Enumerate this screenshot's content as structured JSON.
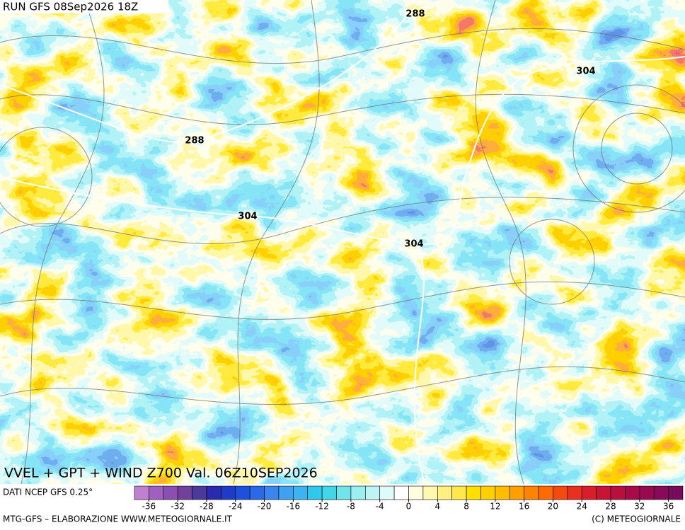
{
  "header": {
    "run": "RUN GFS 08Sep2026 18Z"
  },
  "map": {
    "contour_labels": [
      "288",
      "288",
      "304",
      "304",
      "304"
    ]
  },
  "footer": {
    "title": "VVEL + GPT + WIND Z700 Val. 06Z10SEP2026",
    "source": "DATI NCEP GFS 0.25°",
    "credit": "MTG-GFS – ELABORAZIONE WWW.METEOGIORNALE.IT",
    "copyright": "(C) METEOGIORNALE"
  },
  "colorbar": {
    "lim": [
      -38,
      38
    ],
    "ticks": [
      -36,
      -32,
      -28,
      -24,
      -20,
      -16,
      -12,
      -8,
      -4,
      0,
      4,
      8,
      12,
      16,
      20,
      24,
      28,
      32,
      36
    ],
    "colors": [
      "#c080d0",
      "#a060c0",
      "#8a4fb0",
      "#70409a",
      "#4a3a9a",
      "#2a2ab0",
      "#1e3cc8",
      "#1e50dc",
      "#2a6ae6",
      "#3a86ee",
      "#40a0f2",
      "#3cb4f0",
      "#30c8ec",
      "#40d8e8",
      "#70e4ea",
      "#9ceef0",
      "#c0f4f4",
      "#e0fafa",
      "#ffffff",
      "#fffce0",
      "#fff8b0",
      "#fff080",
      "#ffe84a",
      "#ffe000",
      "#ffd000",
      "#ffbc00",
      "#ffa000",
      "#ff8400",
      "#ff6a00",
      "#f44a10",
      "#e83020",
      "#d81e2a",
      "#c81434",
      "#b8103e",
      "#a80c48",
      "#980a50",
      "#880a58",
      "#780a5c"
    ]
  }
}
